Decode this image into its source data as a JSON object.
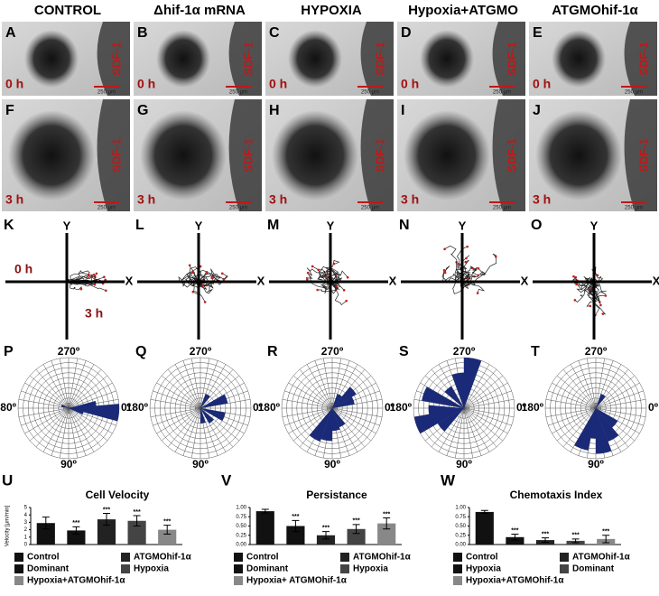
{
  "columns": [
    "CONTROL",
    "Δhif-1α mRNA",
    "HYPOXIA",
    "Hypoxia+ATGMO",
    "ATGMOhif-1α"
  ],
  "image_rows": [
    {
      "time": "0 h",
      "letters": [
        "A",
        "B",
        "C",
        "D",
        "E"
      ]
    },
    {
      "time": "3 h",
      "letters": [
        "F",
        "G",
        "H",
        "I",
        "J"
      ]
    }
  ],
  "image_label": "SDF-1",
  "scale_bar": "250 µm",
  "trajectory": {
    "letters": [
      "K",
      "L",
      "M",
      "N",
      "O"
    ],
    "y_axis": "Y",
    "x_axis": "X",
    "start": "0 h",
    "end": "3 h"
  },
  "rose": {
    "letters": [
      "P",
      "Q",
      "R",
      "S",
      "T"
    ],
    "angle_labels": [
      "270º",
      "180º",
      "0º",
      "90º"
    ],
    "plots": [
      {
        "wedges": [
          {
            "angle": 5,
            "length": 1.0
          },
          {
            "angle": 355,
            "length": 0.55
          },
          {
            "angle": 15,
            "length": 0.3
          },
          {
            "angle": 200,
            "length": 0.15
          }
        ]
      },
      {
        "wedges": [
          {
            "angle": 340,
            "length": 0.55
          },
          {
            "angle": 20,
            "length": 0.5
          },
          {
            "angle": 50,
            "length": 0.35
          },
          {
            "angle": 80,
            "length": 0.3
          },
          {
            "angle": 300,
            "length": 0.3
          }
        ]
      },
      {
        "wedges": [
          {
            "angle": 100,
            "length": 0.65
          },
          {
            "angle": 120,
            "length": 0.7
          },
          {
            "angle": 80,
            "length": 0.45
          },
          {
            "angle": 60,
            "length": 0.4
          },
          {
            "angle": 320,
            "length": 0.55
          },
          {
            "angle": 340,
            "length": 0.45
          },
          {
            "angle": 300,
            "length": 0.3
          }
        ]
      },
      {
        "wedges": [
          {
            "angle": 280,
            "length": 1.0
          },
          {
            "angle": 260,
            "length": 0.7
          },
          {
            "angle": 200,
            "length": 0.85
          },
          {
            "angle": 160,
            "length": 1.0
          },
          {
            "angle": 175,
            "length": 0.7
          },
          {
            "angle": 140,
            "length": 0.6
          },
          {
            "angle": 230,
            "length": 0.5
          }
        ]
      },
      {
        "wedges": [
          {
            "angle": 80,
            "length": 0.9
          },
          {
            "angle": 100,
            "length": 0.6
          },
          {
            "angle": 60,
            "length": 0.7
          },
          {
            "angle": 110,
            "length": 0.85
          },
          {
            "angle": 40,
            "length": 0.5
          },
          {
            "angle": 300,
            "length": 0.3
          }
        ]
      }
    ]
  },
  "chart_panels": [
    "U",
    "V",
    "W"
  ],
  "chart_data": [
    {
      "type": "bar",
      "title": "Cell Velocity",
      "ylabel": "Velocity [µm/min]",
      "categories": [
        "Control",
        "Dominant",
        "ATGMOhif-1α",
        "Hypoxia",
        "Hypoxia+ATGMOhif-1α"
      ],
      "values": [
        2.9,
        1.9,
        3.4,
        3.2,
        2.0
      ],
      "errors": [
        0.8,
        0.5,
        0.8,
        0.7,
        0.6
      ],
      "significance": [
        null,
        "***",
        "***",
        "***",
        "***"
      ],
      "colors": [
        "#111111",
        "#111111",
        "#222222",
        "#444444",
        "#888888"
      ],
      "ylim": [
        0,
        5
      ],
      "yticks": [
        0,
        1,
        2,
        3,
        4,
        5
      ]
    },
    {
      "type": "bar",
      "title": "Persistance",
      "categories": [
        "Control",
        "Dominant",
        "ATGMOhif-1α",
        "Hypoxia",
        "Hypoxia+ ATGMOhif-1α"
      ],
      "values": [
        0.9,
        0.5,
        0.25,
        0.42,
        0.57
      ],
      "errors": [
        0.05,
        0.15,
        0.1,
        0.12,
        0.15
      ],
      "significance": [
        null,
        "***",
        "***",
        "***",
        "***"
      ],
      "colors": [
        "#111111",
        "#111111",
        "#222222",
        "#444444",
        "#888888"
      ],
      "ylim": [
        0,
        1
      ],
      "yticks": [
        {
          "value": 0,
          "label": "0.00"
        },
        {
          "value": 0.25,
          "label": "0.25"
        },
        {
          "value": 0.5,
          "label": "0.50"
        },
        {
          "value": 0.75,
          "label": "0.75"
        },
        {
          "value": 1,
          "label": "1.00"
        }
      ]
    },
    {
      "type": "bar",
      "title": "Chemotaxis Index",
      "categories": [
        "Control",
        "Hypoxia",
        "ATGMOhif-1α",
        "Dominant",
        "Hypoxia+ATGMOhif-1α"
      ],
      "values": [
        0.88,
        0.2,
        0.12,
        0.1,
        0.15
      ],
      "errors": [
        0.04,
        0.08,
        0.06,
        0.05,
        0.1
      ],
      "significance": [
        null,
        "***",
        "***",
        "***",
        "***"
      ],
      "colors": [
        "#111111",
        "#111111",
        "#222222",
        "#444444",
        "#888888"
      ],
      "ylim": [
        0,
        1
      ],
      "yticks": [
        {
          "value": 0,
          "label": "0.00"
        },
        {
          "value": 0.25,
          "label": "0.25"
        },
        {
          "value": 0.5,
          "label": "0.50"
        },
        {
          "value": 0.75,
          "label": "0.75"
        },
        {
          "value": 1,
          "label": "1.00"
        }
      ]
    }
  ]
}
